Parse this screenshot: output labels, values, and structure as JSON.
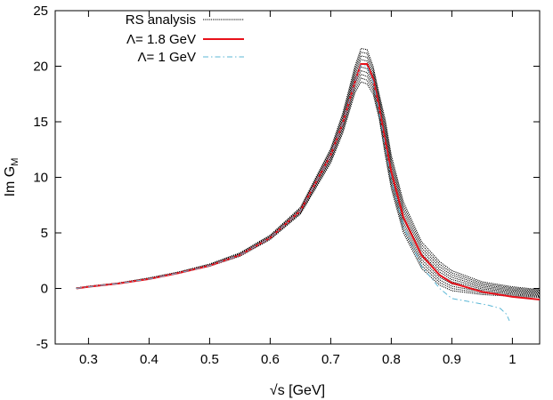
{
  "chart_data": {
    "type": "line",
    "xlabel": "√s [GeV]",
    "ylabel_main": "Im G",
    "ylabel_sub": "M",
    "xlim": [
      0.245,
      1.045
    ],
    "ylim": [
      -5,
      25
    ],
    "xticks": [
      0.3,
      0.4,
      0.5,
      0.6,
      0.7,
      0.8,
      0.9,
      1
    ],
    "xtick_labels": [
      "0.3",
      "0.4",
      "0.5",
      "0.6",
      "0.7",
      "0.8",
      "0.9",
      "1"
    ],
    "yticks": [
      -5,
      0,
      5,
      10,
      15,
      20,
      25
    ],
    "ytick_labels": [
      "-5",
      "0",
      "5",
      "10",
      "15",
      "20",
      "25"
    ],
    "grid": false,
    "legend_position": "top-left",
    "series": [
      {
        "name": "RS analysis",
        "style": "band",
        "color": "#000000",
        "x": [
          0.28,
          0.3,
          0.35,
          0.4,
          0.45,
          0.5,
          0.55,
          0.6,
          0.65,
          0.7,
          0.72,
          0.74,
          0.75,
          0.76,
          0.77,
          0.78,
          0.79,
          0.8,
          0.82,
          0.85,
          0.88,
          0.9,
          0.95,
          1.0,
          1.045
        ],
        "upper": [
          0.05,
          0.2,
          0.5,
          0.95,
          1.5,
          2.2,
          3.2,
          4.8,
          7.3,
          12.6,
          15.8,
          20.0,
          21.6,
          21.5,
          20.0,
          17.5,
          15.2,
          12.0,
          7.8,
          4.2,
          2.4,
          1.6,
          0.6,
          0.15,
          -0.1
        ],
        "lower": [
          0.0,
          0.15,
          0.45,
          0.85,
          1.4,
          2.0,
          2.9,
          4.4,
          6.7,
          11.3,
          14.0,
          17.6,
          18.6,
          18.4,
          17.5,
          15.3,
          12.0,
          9.0,
          5.0,
          1.8,
          0.3,
          -0.2,
          -0.55,
          -0.7,
          -0.8
        ]
      },
      {
        "name": "Λ= 1.8 GeV",
        "style": "solid",
        "color": "#e8111a",
        "x": [
          0.28,
          0.3,
          0.35,
          0.4,
          0.45,
          0.5,
          0.55,
          0.6,
          0.65,
          0.7,
          0.72,
          0.74,
          0.75,
          0.76,
          0.77,
          0.78,
          0.79,
          0.8,
          0.82,
          0.85,
          0.88,
          0.9,
          0.95,
          1.0,
          1.045
        ],
        "y": [
          0.0,
          0.15,
          0.45,
          0.85,
          1.4,
          2.05,
          3.0,
          4.55,
          7.0,
          12.0,
          14.9,
          18.6,
          20.2,
          20.2,
          18.9,
          16.3,
          13.3,
          10.5,
          6.4,
          3.0,
          1.2,
          0.5,
          -0.3,
          -0.75,
          -1.0
        ]
      },
      {
        "name": "Λ= 1 GeV",
        "style": "dashdot",
        "color": "#5bb7d6",
        "x": [
          0.28,
          0.3,
          0.35,
          0.4,
          0.45,
          0.5,
          0.55,
          0.6,
          0.65,
          0.7,
          0.72,
          0.74,
          0.75,
          0.76,
          0.77,
          0.78,
          0.79,
          0.8,
          0.82,
          0.85,
          0.88,
          0.9,
          0.93,
          0.96,
          0.98,
          0.99,
          0.995
        ],
        "y": [
          0.0,
          0.15,
          0.45,
          0.85,
          1.4,
          2.05,
          3.0,
          4.55,
          7.0,
          12.0,
          14.9,
          18.6,
          20.1,
          20.0,
          18.6,
          15.9,
          12.8,
          9.8,
          5.6,
          2.0,
          0.0,
          -0.9,
          -1.2,
          -1.5,
          -1.8,
          -2.3,
          -2.9
        ]
      }
    ]
  }
}
